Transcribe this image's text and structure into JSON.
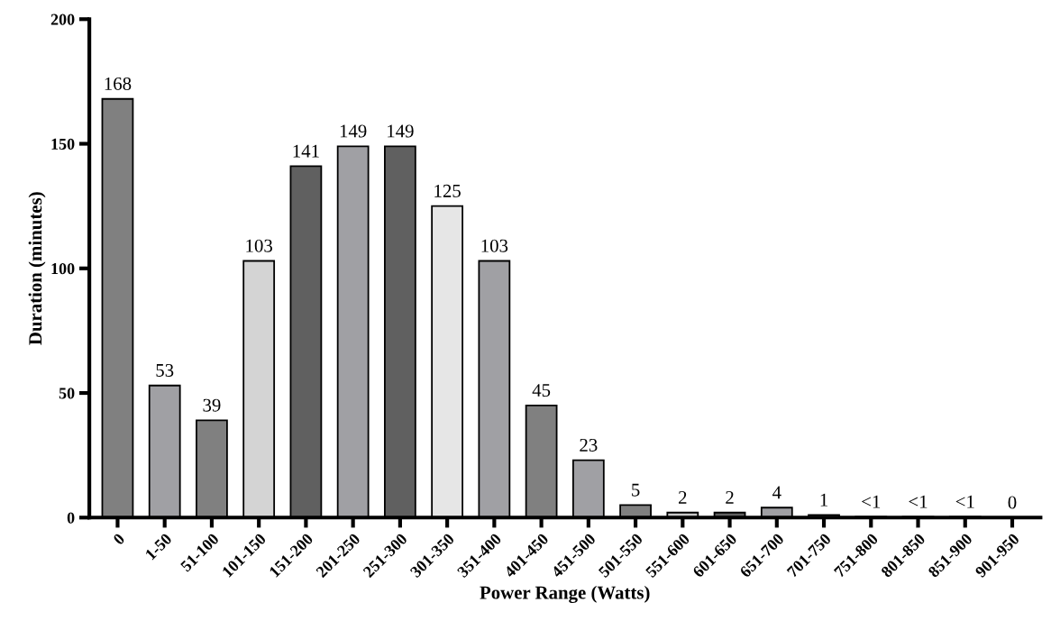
{
  "chart_data": {
    "type": "bar",
    "xlabel": "Power Range (Watts)",
    "ylabel": "Duration (minutes)",
    "categories": [
      "0",
      "1-50",
      "51-100",
      "101-150",
      "151-200",
      "201-250",
      "251-300",
      "301-350",
      "351-400",
      "401-450",
      "451-500",
      "501-550",
      "551-600",
      "601-650",
      "651-700",
      "701-750",
      "751-800",
      "801-850",
      "851-900",
      "901-950"
    ],
    "values": [
      168,
      53,
      39,
      103,
      141,
      149,
      149,
      125,
      103,
      45,
      23,
      5,
      2,
      2,
      4,
      1,
      0.3,
      0.3,
      0.3,
      0
    ],
    "value_labels": [
      "168",
      "53",
      "39",
      "103",
      "141",
      "149",
      "149",
      "125",
      "103",
      "45",
      "23",
      "5",
      "2",
      "2",
      "4",
      "1",
      "<1",
      "<1",
      "<1",
      "0"
    ],
    "colors": [
      "#808080",
      "#a0a0a4",
      "#808080",
      "#d4d4d4",
      "#606060",
      "#a0a0a4",
      "#606060",
      "#e6e6e6",
      "#a0a0a4",
      "#808080",
      "#a0a0a4",
      "#808080",
      "#c8c8c8",
      "#606060",
      "#a0a0a4",
      "#808080",
      "#a0a0a4",
      "#808080",
      "#606060",
      "#ffffff"
    ],
    "ylim": [
      0,
      200
    ],
    "yticks": [
      0,
      50,
      100,
      150,
      200
    ],
    "grid": false,
    "legend": false
  }
}
